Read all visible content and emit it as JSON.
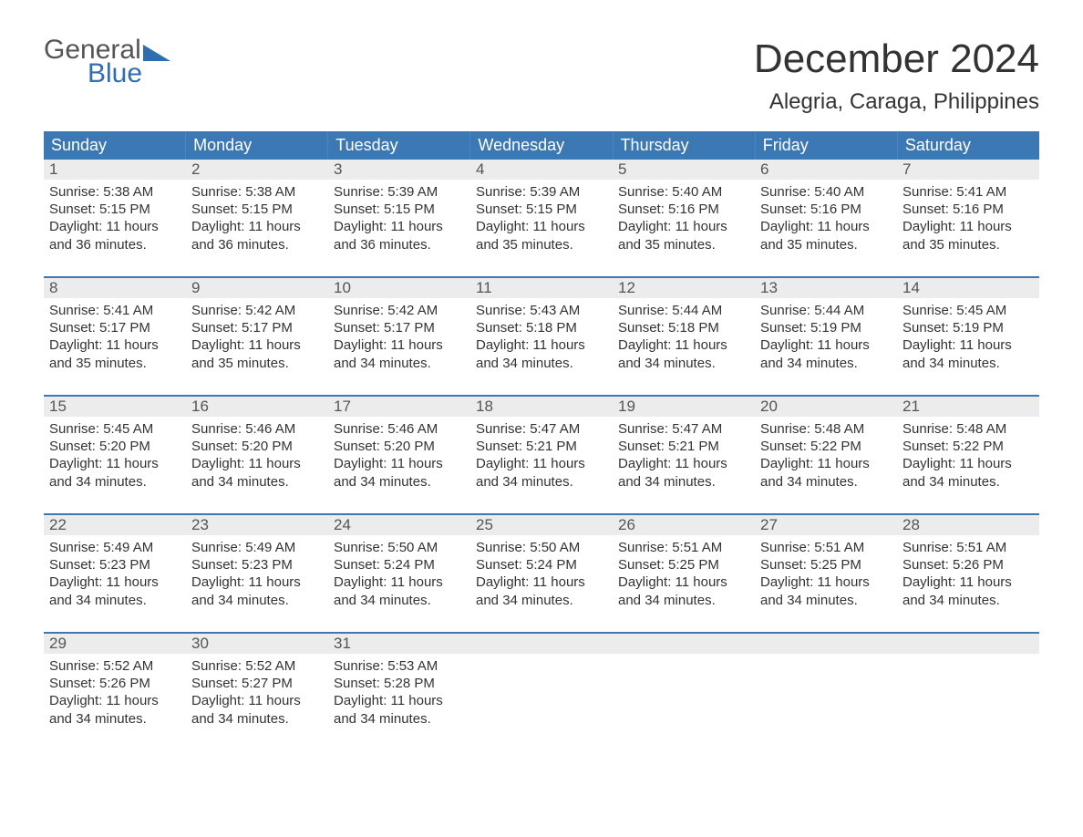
{
  "logo": {
    "word1": "General",
    "word2": "Blue"
  },
  "title": "December 2024",
  "location": "Alegria, Caraga, Philippines",
  "colors": {
    "header_bg": "#3c78b4",
    "header_text": "#ffffff",
    "daynum_bg": "#ececec",
    "week_border": "#3c78b4",
    "logo_accent": "#2f6fb0",
    "body_text": "#333333"
  },
  "dow": [
    "Sunday",
    "Monday",
    "Tuesday",
    "Wednesday",
    "Thursday",
    "Friday",
    "Saturday"
  ],
  "weeks": [
    [
      {
        "n": "1",
        "sunrise": "Sunrise: 5:38 AM",
        "sunset": "Sunset: 5:15 PM",
        "d1": "Daylight: 11 hours",
        "d2": "and 36 minutes."
      },
      {
        "n": "2",
        "sunrise": "Sunrise: 5:38 AM",
        "sunset": "Sunset: 5:15 PM",
        "d1": "Daylight: 11 hours",
        "d2": "and 36 minutes."
      },
      {
        "n": "3",
        "sunrise": "Sunrise: 5:39 AM",
        "sunset": "Sunset: 5:15 PM",
        "d1": "Daylight: 11 hours",
        "d2": "and 36 minutes."
      },
      {
        "n": "4",
        "sunrise": "Sunrise: 5:39 AM",
        "sunset": "Sunset: 5:15 PM",
        "d1": "Daylight: 11 hours",
        "d2": "and 35 minutes."
      },
      {
        "n": "5",
        "sunrise": "Sunrise: 5:40 AM",
        "sunset": "Sunset: 5:16 PM",
        "d1": "Daylight: 11 hours",
        "d2": "and 35 minutes."
      },
      {
        "n": "6",
        "sunrise": "Sunrise: 5:40 AM",
        "sunset": "Sunset: 5:16 PM",
        "d1": "Daylight: 11 hours",
        "d2": "and 35 minutes."
      },
      {
        "n": "7",
        "sunrise": "Sunrise: 5:41 AM",
        "sunset": "Sunset: 5:16 PM",
        "d1": "Daylight: 11 hours",
        "d2": "and 35 minutes."
      }
    ],
    [
      {
        "n": "8",
        "sunrise": "Sunrise: 5:41 AM",
        "sunset": "Sunset: 5:17 PM",
        "d1": "Daylight: 11 hours",
        "d2": "and 35 minutes."
      },
      {
        "n": "9",
        "sunrise": "Sunrise: 5:42 AM",
        "sunset": "Sunset: 5:17 PM",
        "d1": "Daylight: 11 hours",
        "d2": "and 35 minutes."
      },
      {
        "n": "10",
        "sunrise": "Sunrise: 5:42 AM",
        "sunset": "Sunset: 5:17 PM",
        "d1": "Daylight: 11 hours",
        "d2": "and 34 minutes."
      },
      {
        "n": "11",
        "sunrise": "Sunrise: 5:43 AM",
        "sunset": "Sunset: 5:18 PM",
        "d1": "Daylight: 11 hours",
        "d2": "and 34 minutes."
      },
      {
        "n": "12",
        "sunrise": "Sunrise: 5:44 AM",
        "sunset": "Sunset: 5:18 PM",
        "d1": "Daylight: 11 hours",
        "d2": "and 34 minutes."
      },
      {
        "n": "13",
        "sunrise": "Sunrise: 5:44 AM",
        "sunset": "Sunset: 5:19 PM",
        "d1": "Daylight: 11 hours",
        "d2": "and 34 minutes."
      },
      {
        "n": "14",
        "sunrise": "Sunrise: 5:45 AM",
        "sunset": "Sunset: 5:19 PM",
        "d1": "Daylight: 11 hours",
        "d2": "and 34 minutes."
      }
    ],
    [
      {
        "n": "15",
        "sunrise": "Sunrise: 5:45 AM",
        "sunset": "Sunset: 5:20 PM",
        "d1": "Daylight: 11 hours",
        "d2": "and 34 minutes."
      },
      {
        "n": "16",
        "sunrise": "Sunrise: 5:46 AM",
        "sunset": "Sunset: 5:20 PM",
        "d1": "Daylight: 11 hours",
        "d2": "and 34 minutes."
      },
      {
        "n": "17",
        "sunrise": "Sunrise: 5:46 AM",
        "sunset": "Sunset: 5:20 PM",
        "d1": "Daylight: 11 hours",
        "d2": "and 34 minutes."
      },
      {
        "n": "18",
        "sunrise": "Sunrise: 5:47 AM",
        "sunset": "Sunset: 5:21 PM",
        "d1": "Daylight: 11 hours",
        "d2": "and 34 minutes."
      },
      {
        "n": "19",
        "sunrise": "Sunrise: 5:47 AM",
        "sunset": "Sunset: 5:21 PM",
        "d1": "Daylight: 11 hours",
        "d2": "and 34 minutes."
      },
      {
        "n": "20",
        "sunrise": "Sunrise: 5:48 AM",
        "sunset": "Sunset: 5:22 PM",
        "d1": "Daylight: 11 hours",
        "d2": "and 34 minutes."
      },
      {
        "n": "21",
        "sunrise": "Sunrise: 5:48 AM",
        "sunset": "Sunset: 5:22 PM",
        "d1": "Daylight: 11 hours",
        "d2": "and 34 minutes."
      }
    ],
    [
      {
        "n": "22",
        "sunrise": "Sunrise: 5:49 AM",
        "sunset": "Sunset: 5:23 PM",
        "d1": "Daylight: 11 hours",
        "d2": "and 34 minutes."
      },
      {
        "n": "23",
        "sunrise": "Sunrise: 5:49 AM",
        "sunset": "Sunset: 5:23 PM",
        "d1": "Daylight: 11 hours",
        "d2": "and 34 minutes."
      },
      {
        "n": "24",
        "sunrise": "Sunrise: 5:50 AM",
        "sunset": "Sunset: 5:24 PM",
        "d1": "Daylight: 11 hours",
        "d2": "and 34 minutes."
      },
      {
        "n": "25",
        "sunrise": "Sunrise: 5:50 AM",
        "sunset": "Sunset: 5:24 PM",
        "d1": "Daylight: 11 hours",
        "d2": "and 34 minutes."
      },
      {
        "n": "26",
        "sunrise": "Sunrise: 5:51 AM",
        "sunset": "Sunset: 5:25 PM",
        "d1": "Daylight: 11 hours",
        "d2": "and 34 minutes."
      },
      {
        "n": "27",
        "sunrise": "Sunrise: 5:51 AM",
        "sunset": "Sunset: 5:25 PM",
        "d1": "Daylight: 11 hours",
        "d2": "and 34 minutes."
      },
      {
        "n": "28",
        "sunrise": "Sunrise: 5:51 AM",
        "sunset": "Sunset: 5:26 PM",
        "d1": "Daylight: 11 hours",
        "d2": "and 34 minutes."
      }
    ],
    [
      {
        "n": "29",
        "sunrise": "Sunrise: 5:52 AM",
        "sunset": "Sunset: 5:26 PM",
        "d1": "Daylight: 11 hours",
        "d2": "and 34 minutes."
      },
      {
        "n": "30",
        "sunrise": "Sunrise: 5:52 AM",
        "sunset": "Sunset: 5:27 PM",
        "d1": "Daylight: 11 hours",
        "d2": "and 34 minutes."
      },
      {
        "n": "31",
        "sunrise": "Sunrise: 5:53 AM",
        "sunset": "Sunset: 5:28 PM",
        "d1": "Daylight: 11 hours",
        "d2": "and 34 minutes."
      },
      {
        "empty": true
      },
      {
        "empty": true
      },
      {
        "empty": true
      },
      {
        "empty": true
      }
    ]
  ]
}
